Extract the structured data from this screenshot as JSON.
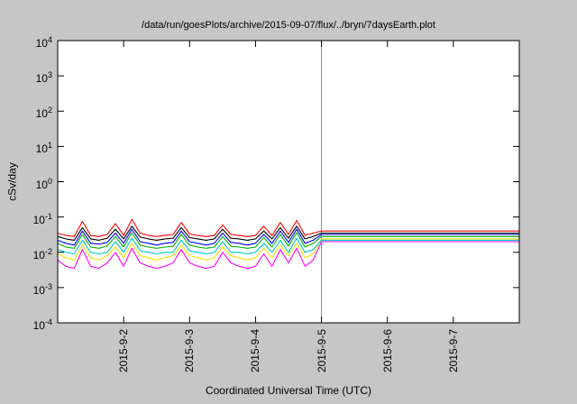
{
  "title": "/data/run/goesPlots/archive/2015-09-07/flux/../bryn/7daysEarth.plot",
  "axes": {
    "ylabel": "cSv/day",
    "xlabel": "Coordinated Universal Time (UTC)",
    "y_tick_base": "10",
    "y_tick_exponents": [
      4,
      3,
      2,
      1,
      0,
      -1,
      -2,
      -3,
      -4
    ],
    "x_tick_labels": [
      "2015-9-2",
      "2015-9-3",
      "2015-9-4",
      "2015-9-5",
      "2015-9-6",
      "2015-9-7"
    ],
    "x_tick_days": [
      2,
      3,
      4,
      5,
      6,
      7
    ],
    "x_range_days": [
      1,
      8
    ],
    "y_log_range": [
      -4,
      4
    ]
  },
  "marker": {
    "day": 5,
    "color": "#8a8a8a"
  },
  "frame_color": "#000000",
  "plot_bg": "#ffffff",
  "chart_data": {
    "type": "line",
    "title": "/data/run/goesPlots/archive/2015-09-07/flux/../bryn/7daysEarth.plot",
    "xlabel": "Coordinated Universal Time (UTC)",
    "ylabel": "cSv/day",
    "x_unit": "days (2015-09)",
    "xlim": [
      1,
      8
    ],
    "ylim_log10": [
      -4,
      4
    ],
    "grid": false,
    "legend": "none",
    "x": [
      1.0,
      1.125,
      1.25,
      1.375,
      1.5,
      1.625,
      1.75,
      1.875,
      2.0,
      2.125,
      2.25,
      2.375,
      2.5,
      2.625,
      2.75,
      2.875,
      3.0,
      3.125,
      3.25,
      3.375,
      3.5,
      3.625,
      3.75,
      3.875,
      4.0,
      4.125,
      4.25,
      4.375,
      4.5,
      4.625,
      4.75,
      4.875,
      5.0,
      8.0
    ],
    "series": [
      {
        "name": "series-yellow",
        "color": "#f2e000",
        "values": [
          0.009,
          0.007,
          0.006,
          0.016,
          0.007,
          0.006,
          0.008,
          0.014,
          0.007,
          0.018,
          0.008,
          0.007,
          0.006,
          0.007,
          0.008,
          0.016,
          0.008,
          0.007,
          0.006,
          0.007,
          0.014,
          0.008,
          0.007,
          0.006,
          0.007,
          0.013,
          0.007,
          0.016,
          0.008,
          0.018,
          0.007,
          0.009,
          0.024,
          0.024
        ]
      },
      {
        "name": "series-cyan",
        "color": "#00c8c8",
        "values": [
          0.012,
          0.01,
          0.009,
          0.022,
          0.01,
          0.009,
          0.01,
          0.02,
          0.01,
          0.025,
          0.011,
          0.01,
          0.009,
          0.01,
          0.01,
          0.022,
          0.011,
          0.01,
          0.009,
          0.01,
          0.02,
          0.01,
          0.01,
          0.009,
          0.01,
          0.018,
          0.01,
          0.022,
          0.01,
          0.025,
          0.01,
          0.012,
          0.022,
          0.022
        ]
      },
      {
        "name": "series-magenta",
        "color": "#ff00ff",
        "values": [
          0.006,
          0.004,
          0.0035,
          0.012,
          0.004,
          0.0035,
          0.005,
          0.01,
          0.004,
          0.013,
          0.005,
          0.004,
          0.0035,
          0.004,
          0.005,
          0.012,
          0.005,
          0.004,
          0.0035,
          0.004,
          0.01,
          0.005,
          0.004,
          0.0035,
          0.004,
          0.009,
          0.004,
          0.012,
          0.005,
          0.013,
          0.004,
          0.006,
          0.02,
          0.02
        ]
      },
      {
        "name": "series-green",
        "color": "#00b000",
        "values": [
          0.018,
          0.014,
          0.013,
          0.032,
          0.014,
          0.013,
          0.015,
          0.028,
          0.014,
          0.036,
          0.016,
          0.014,
          0.013,
          0.014,
          0.015,
          0.032,
          0.016,
          0.014,
          0.013,
          0.014,
          0.028,
          0.015,
          0.014,
          0.013,
          0.014,
          0.026,
          0.014,
          0.032,
          0.015,
          0.036,
          0.014,
          0.018,
          0.028,
          0.028
        ]
      },
      {
        "name": "series-blue",
        "color": "#0000ff",
        "values": [
          0.022,
          0.018,
          0.016,
          0.04,
          0.018,
          0.017,
          0.019,
          0.035,
          0.018,
          0.045,
          0.02,
          0.018,
          0.016,
          0.018,
          0.019,
          0.04,
          0.02,
          0.018,
          0.016,
          0.018,
          0.035,
          0.019,
          0.018,
          0.016,
          0.018,
          0.032,
          0.018,
          0.04,
          0.019,
          0.045,
          0.018,
          0.022,
          0.032,
          0.032
        ]
      },
      {
        "name": "series-black",
        "color": "#000000",
        "values": [
          0.028,
          0.024,
          0.022,
          0.05,
          0.024,
          0.022,
          0.025,
          0.045,
          0.024,
          0.055,
          0.027,
          0.024,
          0.022,
          0.024,
          0.025,
          0.05,
          0.026,
          0.024,
          0.022,
          0.024,
          0.045,
          0.025,
          0.024,
          0.022,
          0.024,
          0.04,
          0.024,
          0.05,
          0.025,
          0.055,
          0.024,
          0.028,
          0.035,
          0.035
        ]
      },
      {
        "name": "series-red",
        "color": "#ff0000",
        "values": [
          0.035,
          0.03,
          0.028,
          0.075,
          0.03,
          0.028,
          0.032,
          0.065,
          0.03,
          0.085,
          0.035,
          0.03,
          0.028,
          0.03,
          0.032,
          0.07,
          0.033,
          0.03,
          0.028,
          0.03,
          0.06,
          0.032,
          0.03,
          0.028,
          0.03,
          0.055,
          0.03,
          0.07,
          0.032,
          0.08,
          0.03,
          0.035,
          0.04,
          0.04
        ]
      }
    ]
  }
}
